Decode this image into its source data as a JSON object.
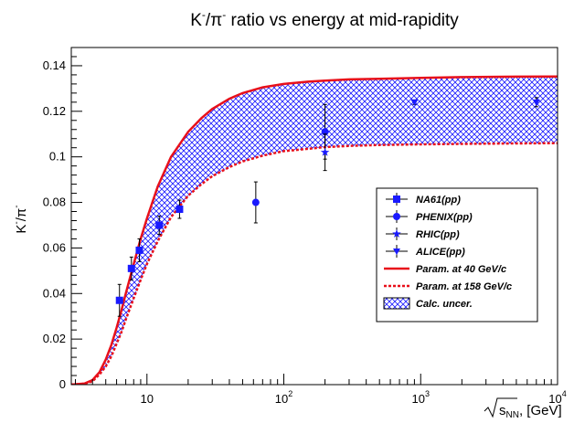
{
  "chart_data": {
    "type": "scatter",
    "title": "K⁻/π⁻ ratio vs energy at mid-rapidity",
    "title_parts": {
      "a": "K",
      "a_sup": "-",
      "b": "/π",
      "b_sup": "-",
      "rest": " ratio vs energy at mid-rapidity"
    },
    "xlabel": "√s_NN, [GeV]",
    "xlabel_parts": {
      "s": "s",
      "sub": "NN",
      "rest": ", [GeV]"
    },
    "ylabel": "K⁻/π⁻",
    "ylabel_parts": {
      "a": "K",
      "a_sup": "-",
      "b": "/π",
      "b_sup": "-"
    },
    "x_scale": "log",
    "xlim": [
      2.8,
      10000
    ],
    "ylim": [
      0,
      0.148
    ],
    "y_ticks": [
      "0",
      "0.02",
      "0.04",
      "0.06",
      "0.08",
      "0.1",
      "0.12",
      "0.14"
    ],
    "x_ticks": [
      {
        "base": "10",
        "exp": ""
      },
      {
        "base": "10",
        "exp": "2"
      },
      {
        "base": "10",
        "exp": "3"
      },
      {
        "base": "10",
        "exp": "4"
      }
    ],
    "grid": false,
    "legend_position": "center-right",
    "series": [
      {
        "name": "NA61(pp)",
        "marker": "square",
        "color": "#1a1aff",
        "points": [
          {
            "x": 6.3,
            "y": 0.037,
            "err": 0.007
          },
          {
            "x": 7.7,
            "y": 0.051,
            "err": 0.005
          },
          {
            "x": 8.8,
            "y": 0.059,
            "err": 0.005
          },
          {
            "x": 12.3,
            "y": 0.07,
            "err": 0.004
          },
          {
            "x": 17.3,
            "y": 0.077,
            "err": 0.004
          }
        ]
      },
      {
        "name": "PHENIX(pp)",
        "marker": "circle",
        "color": "#1a1aff",
        "points": [
          {
            "x": 62.4,
            "y": 0.08,
            "err": 0.009
          },
          {
            "x": 200,
            "y": 0.111,
            "err": 0.012
          }
        ]
      },
      {
        "name": "RHIC(pp)",
        "marker": "star",
        "color": "#1a1aff",
        "points": [
          {
            "x": 200,
            "y": 0.102,
            "err": 0.008
          }
        ]
      },
      {
        "name": "ALICE(pp)",
        "marker": "triangle-down",
        "color": "#1a1aff",
        "points": [
          {
            "x": 900,
            "y": 0.124,
            "err": 0.001
          },
          {
            "x": 7000,
            "y": 0.124,
            "err": 0.002
          }
        ]
      }
    ],
    "curves": [
      {
        "name": "Param. at 40 GeV/c",
        "style": "solid",
        "color": "#e8101a",
        "x": [
          2.8,
          3.5,
          4.0,
          4.5,
          5.0,
          5.5,
          6.0,
          6.5,
          7.0,
          8.0,
          9.0,
          10,
          12,
          15,
          20,
          25,
          30,
          40,
          50,
          70,
          100,
          150,
          200,
          300,
          500,
          1000,
          2000,
          5000,
          10000
        ],
        "y": [
          0,
          0.0005,
          0.002,
          0.0055,
          0.011,
          0.0175,
          0.025,
          0.0325,
          0.04,
          0.053,
          0.064,
          0.073,
          0.087,
          0.1,
          0.111,
          0.117,
          0.121,
          0.1255,
          0.128,
          0.1305,
          0.132,
          0.133,
          0.1335,
          0.134,
          0.1343,
          0.1347,
          0.135,
          0.1352,
          0.1353
        ]
      },
      {
        "name": "Param. at 158 GeV/c",
        "style": "dotted",
        "color": "#e8101a",
        "x": [
          2.8,
          3.5,
          4.0,
          4.5,
          5.0,
          5.5,
          6.0,
          6.5,
          7.0,
          8.0,
          9.0,
          10,
          12,
          15,
          20,
          25,
          30,
          40,
          50,
          70,
          100,
          150,
          200,
          300,
          500,
          1000,
          2000,
          5000,
          10000
        ],
        "y": [
          0,
          0.0004,
          0.0015,
          0.0045,
          0.008,
          0.0125,
          0.018,
          0.023,
          0.0285,
          0.038,
          0.046,
          0.053,
          0.063,
          0.0735,
          0.083,
          0.088,
          0.0915,
          0.0955,
          0.098,
          0.1005,
          0.1025,
          0.1035,
          0.1043,
          0.1048,
          0.1052,
          0.1055,
          0.1057,
          0.1059,
          0.106
        ]
      }
    ],
    "band": {
      "name": "Calc. uncer.",
      "color": "#1a1aff",
      "between": [
        "Param. at 40 GeV/c",
        "Param. at 158 GeV/c"
      ]
    }
  }
}
